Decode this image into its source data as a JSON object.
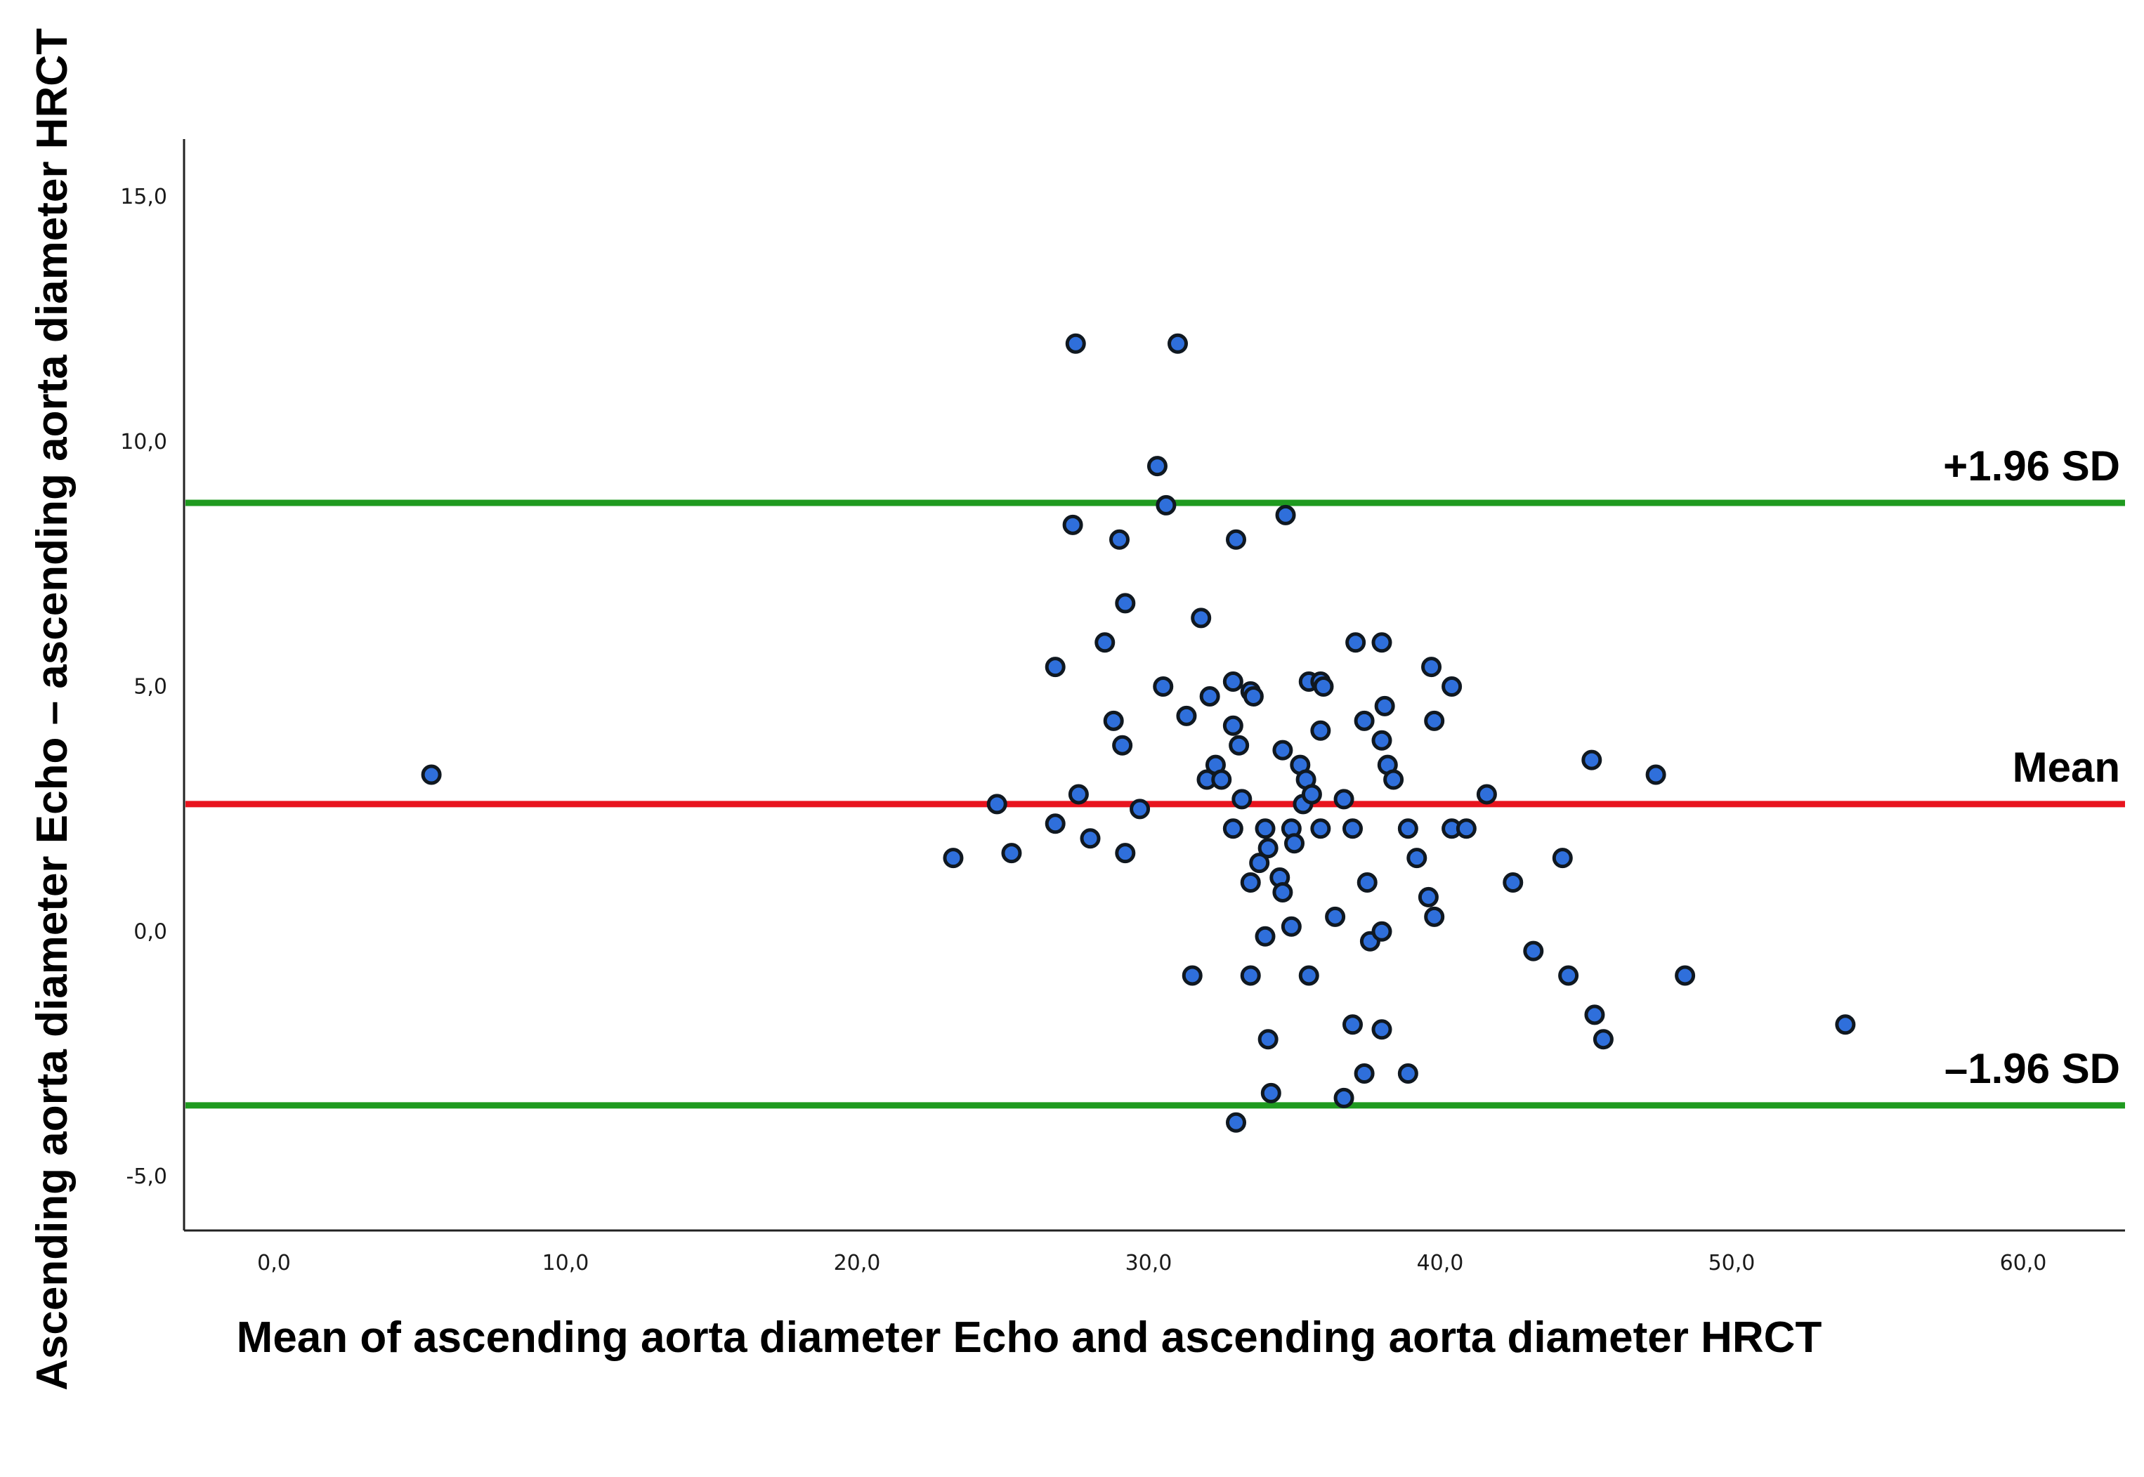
{
  "chart_data": {
    "type": "scatter",
    "title": "",
    "xlabel": "Mean of ascending aorta diameter Echo and ascending aorta diameter HRCT",
    "ylabel": "Ascending aorta diameter Echo – ascending aorta diameter HRCT",
    "xlim": [
      -3,
      63
    ],
    "ylim": [
      -6,
      16.2
    ],
    "x_ticks": [
      "0,0",
      "10,0",
      "20,0",
      "30,0",
      "40,0",
      "50,0",
      "60,0"
    ],
    "x_tick_values": [
      0,
      10,
      20,
      30,
      40,
      50,
      60
    ],
    "y_ticks": [
      "15,0",
      "10,0",
      "5,0",
      "0,0",
      "-5,0"
    ],
    "y_tick_values": [
      15,
      10,
      5,
      0,
      -5
    ],
    "grid": false,
    "reference_lines": [
      {
        "label": "+1.96 SD",
        "y": 8.75,
        "color": "#1f9a1f"
      },
      {
        "label": "Mean",
        "y": 2.6,
        "color": "#e8141e"
      },
      {
        "label": "–1.96 SD",
        "y": -3.55,
        "color": "#1f9a1f"
      }
    ],
    "point_color": "#2f6fdb",
    "point_edge_color": "#101820",
    "points": [
      {
        "x": 5.4,
        "y": 3.2
      },
      {
        "x": 23.3,
        "y": 1.5
      },
      {
        "x": 24.8,
        "y": 2.6
      },
      {
        "x": 25.3,
        "y": 1.6
      },
      {
        "x": 26.8,
        "y": 2.2
      },
      {
        "x": 26.8,
        "y": 5.4
      },
      {
        "x": 27.4,
        "y": 8.3
      },
      {
        "x": 27.5,
        "y": 12.0
      },
      {
        "x": 27.6,
        "y": 2.8
      },
      {
        "x": 28.0,
        "y": 1.9
      },
      {
        "x": 28.5,
        "y": 5.9
      },
      {
        "x": 28.8,
        "y": 4.3
      },
      {
        "x": 29.0,
        "y": 8.0
      },
      {
        "x": 29.1,
        "y": 3.8
      },
      {
        "x": 29.2,
        "y": 6.7
      },
      {
        "x": 29.2,
        "y": 1.6
      },
      {
        "x": 29.7,
        "y": 2.5
      },
      {
        "x": 30.3,
        "y": 9.5
      },
      {
        "x": 30.5,
        "y": 5.0
      },
      {
        "x": 30.6,
        "y": 8.7
      },
      {
        "x": 31.0,
        "y": 12.0
      },
      {
        "x": 31.3,
        "y": 4.4
      },
      {
        "x": 31.5,
        "y": -0.9
      },
      {
        "x": 31.8,
        "y": 6.4
      },
      {
        "x": 32.0,
        "y": 3.1
      },
      {
        "x": 32.1,
        "y": 4.8
      },
      {
        "x": 32.3,
        "y": 3.4
      },
      {
        "x": 32.5,
        "y": 3.1
      },
      {
        "x": 32.9,
        "y": 5.1
      },
      {
        "x": 32.9,
        "y": 4.2
      },
      {
        "x": 32.9,
        "y": 2.1
      },
      {
        "x": 33.0,
        "y": 8.0
      },
      {
        "x": 33.0,
        "y": -3.9
      },
      {
        "x": 33.1,
        "y": 3.8
      },
      {
        "x": 33.2,
        "y": 2.7
      },
      {
        "x": 33.5,
        "y": 4.9
      },
      {
        "x": 33.5,
        "y": 1.0
      },
      {
        "x": 33.5,
        "y": -0.9
      },
      {
        "x": 33.6,
        "y": 4.8
      },
      {
        "x": 33.8,
        "y": 1.4
      },
      {
        "x": 34.0,
        "y": 2.1
      },
      {
        "x": 34.0,
        "y": -0.1
      },
      {
        "x": 34.1,
        "y": 1.7
      },
      {
        "x": 34.1,
        "y": -2.2
      },
      {
        "x": 34.2,
        "y": -3.3
      },
      {
        "x": 34.5,
        "y": 1.1
      },
      {
        "x": 34.6,
        "y": 0.8
      },
      {
        "x": 34.6,
        "y": 3.7
      },
      {
        "x": 34.7,
        "y": 8.5
      },
      {
        "x": 34.9,
        "y": 2.1
      },
      {
        "x": 34.9,
        "y": 0.1
      },
      {
        "x": 35.0,
        "y": 1.8
      },
      {
        "x": 35.2,
        "y": 3.4
      },
      {
        "x": 35.3,
        "y": 2.6
      },
      {
        "x": 35.4,
        "y": 3.1
      },
      {
        "x": 35.5,
        "y": 5.1
      },
      {
        "x": 35.5,
        "y": -0.9
      },
      {
        "x": 35.6,
        "y": 2.8
      },
      {
        "x": 35.9,
        "y": 5.1
      },
      {
        "x": 35.9,
        "y": 4.1
      },
      {
        "x": 35.9,
        "y": 2.1
      },
      {
        "x": 36.0,
        "y": 5.0
      },
      {
        "x": 36.4,
        "y": 0.3
      },
      {
        "x": 36.7,
        "y": 2.7
      },
      {
        "x": 36.7,
        "y": -3.4
      },
      {
        "x": 37.0,
        "y": 2.1
      },
      {
        "x": 37.0,
        "y": -1.9
      },
      {
        "x": 37.1,
        "y": 5.9
      },
      {
        "x": 37.4,
        "y": 4.3
      },
      {
        "x": 37.4,
        "y": -2.9
      },
      {
        "x": 37.5,
        "y": 1.0
      },
      {
        "x": 37.6,
        "y": -0.2
      },
      {
        "x": 38.0,
        "y": 5.9
      },
      {
        "x": 38.0,
        "y": 3.9
      },
      {
        "x": 38.0,
        "y": 0.0
      },
      {
        "x": 38.0,
        "y": -2.0
      },
      {
        "x": 38.1,
        "y": 4.6
      },
      {
        "x": 38.2,
        "y": 3.4
      },
      {
        "x": 38.4,
        "y": 3.1
      },
      {
        "x": 38.9,
        "y": 2.1
      },
      {
        "x": 38.9,
        "y": -2.9
      },
      {
        "x": 39.2,
        "y": 1.5
      },
      {
        "x": 39.6,
        "y": 0.7
      },
      {
        "x": 39.7,
        "y": 5.4
      },
      {
        "x": 39.8,
        "y": 4.3
      },
      {
        "x": 39.8,
        "y": 0.3
      },
      {
        "x": 40.4,
        "y": 5.0
      },
      {
        "x": 40.4,
        "y": 2.1
      },
      {
        "x": 40.9,
        "y": 2.1
      },
      {
        "x": 41.6,
        "y": 2.8
      },
      {
        "x": 42.5,
        "y": 1.0
      },
      {
        "x": 43.2,
        "y": -0.4
      },
      {
        "x": 44.2,
        "y": 1.5
      },
      {
        "x": 44.4,
        "y": -0.9
      },
      {
        "x": 45.2,
        "y": 3.5
      },
      {
        "x": 45.3,
        "y": -1.7
      },
      {
        "x": 45.6,
        "y": -2.2
      },
      {
        "x": 47.4,
        "y": 3.2
      },
      {
        "x": 48.4,
        "y": -0.9
      },
      {
        "x": 53.9,
        "y": -1.9
      }
    ]
  }
}
